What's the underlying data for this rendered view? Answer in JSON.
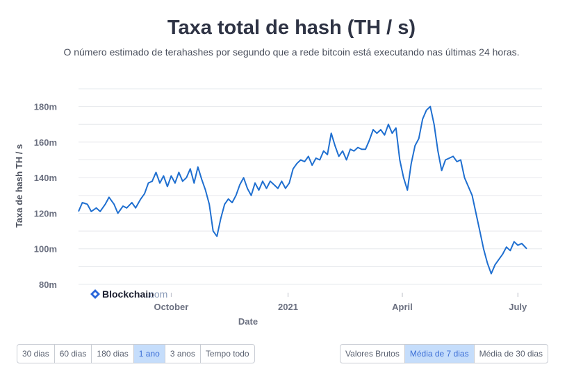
{
  "header": {
    "title": "Taxa total de hash (TH / s)",
    "subtitle": "O número estimado de terahashes por segundo que a rede bitcoin está executando nas últimas 24 horas."
  },
  "watermark": {
    "brand": "Blockchain",
    "suffix": ".com"
  },
  "range_buttons": [
    {
      "label": "30 dias",
      "active": false
    },
    {
      "label": "60 dias",
      "active": false
    },
    {
      "label": "180 dias",
      "active": false
    },
    {
      "label": "1 ano",
      "active": true
    },
    {
      "label": "3 anos",
      "active": false
    },
    {
      "label": "Tempo todo",
      "active": false
    }
  ],
  "average_buttons": [
    {
      "label": "Valores Brutos",
      "active": false
    },
    {
      "label": "Média de 7 dias",
      "active": true
    },
    {
      "label": "Média de 30 dias",
      "active": false
    }
  ],
  "colors": {
    "line": "#1f6fd0",
    "active_button_bg": "#c5ddfb",
    "grid": "#e6e8ec",
    "text": "#6b7080"
  },
  "chart_data": {
    "type": "line",
    "title": "Taxa total de hash (TH / s)",
    "xlabel": "Date",
    "ylabel": "Taxa de hash TH / s",
    "x_range": [
      "2020-07-20",
      "2021-07-20"
    ],
    "ylim": [
      80,
      190
    ],
    "y_ticks": [
      80,
      100,
      120,
      140,
      160,
      180
    ],
    "y_tick_labels": [
      "80m",
      "100m",
      "120m",
      "140m",
      "160m",
      "180m"
    ],
    "x_ticks": [
      {
        "date": "2020-10-01",
        "label": "October"
      },
      {
        "date": "2021-01-01",
        "label": "2021"
      },
      {
        "date": "2021-04-01",
        "label": "April"
      },
      {
        "date": "2021-07-01",
        "label": "July"
      }
    ],
    "grid": true,
    "series": [
      {
        "values": [
          [
            "2020-07-20",
            121
          ],
          [
            "2020-07-23",
            126
          ],
          [
            "2020-07-27",
            125
          ],
          [
            "2020-07-30",
            121
          ],
          [
            "2020-08-03",
            123
          ],
          [
            "2020-08-06",
            121
          ],
          [
            "2020-08-10",
            125
          ],
          [
            "2020-08-13",
            129
          ],
          [
            "2020-08-17",
            125
          ],
          [
            "2020-08-20",
            120
          ],
          [
            "2020-08-24",
            124
          ],
          [
            "2020-08-27",
            123
          ],
          [
            "2020-08-31",
            126
          ],
          [
            "2020-09-03",
            123
          ],
          [
            "2020-09-07",
            128
          ],
          [
            "2020-09-10",
            131
          ],
          [
            "2020-09-13",
            137
          ],
          [
            "2020-09-16",
            138
          ],
          [
            "2020-09-19",
            143
          ],
          [
            "2020-09-22",
            137
          ],
          [
            "2020-09-25",
            141
          ],
          [
            "2020-09-28",
            135
          ],
          [
            "2020-10-01",
            141
          ],
          [
            "2020-10-04",
            137
          ],
          [
            "2020-10-07",
            143
          ],
          [
            "2020-10-10",
            138
          ],
          [
            "2020-10-13",
            140
          ],
          [
            "2020-10-16",
            145
          ],
          [
            "2020-10-19",
            137
          ],
          [
            "2020-10-22",
            146
          ],
          [
            "2020-10-25",
            139
          ],
          [
            "2020-10-28",
            133
          ],
          [
            "2020-10-31",
            125
          ],
          [
            "2020-11-03",
            110
          ],
          [
            "2020-11-06",
            107
          ],
          [
            "2020-11-09",
            117
          ],
          [
            "2020-11-12",
            125
          ],
          [
            "2020-11-15",
            128
          ],
          [
            "2020-11-18",
            126
          ],
          [
            "2020-11-21",
            130
          ],
          [
            "2020-11-24",
            136
          ],
          [
            "2020-11-27",
            140
          ],
          [
            "2020-11-30",
            134
          ],
          [
            "2020-12-03",
            130
          ],
          [
            "2020-12-06",
            137
          ],
          [
            "2020-12-09",
            133
          ],
          [
            "2020-12-12",
            138
          ],
          [
            "2020-12-15",
            134
          ],
          [
            "2020-12-18",
            138
          ],
          [
            "2020-12-21",
            136
          ],
          [
            "2020-12-24",
            134
          ],
          [
            "2020-12-27",
            138
          ],
          [
            "2020-12-30",
            134
          ],
          [
            "2021-01-02",
            137
          ],
          [
            "2021-01-05",
            145
          ],
          [
            "2021-01-08",
            148
          ],
          [
            "2021-01-11",
            150
          ],
          [
            "2021-01-14",
            149
          ],
          [
            "2021-01-17",
            152
          ],
          [
            "2021-01-20",
            147
          ],
          [
            "2021-01-23",
            151
          ],
          [
            "2021-01-26",
            150
          ],
          [
            "2021-01-29",
            155
          ],
          [
            "2021-02-01",
            153
          ],
          [
            "2021-02-04",
            165
          ],
          [
            "2021-02-07",
            158
          ],
          [
            "2021-02-10",
            152
          ],
          [
            "2021-02-13",
            155
          ],
          [
            "2021-02-16",
            150
          ],
          [
            "2021-02-19",
            156
          ],
          [
            "2021-02-22",
            155
          ],
          [
            "2021-02-25",
            157
          ],
          [
            "2021-02-28",
            156
          ],
          [
            "2021-03-03",
            156
          ],
          [
            "2021-03-06",
            161
          ],
          [
            "2021-03-09",
            167
          ],
          [
            "2021-03-12",
            165
          ],
          [
            "2021-03-15",
            167
          ],
          [
            "2021-03-18",
            164
          ],
          [
            "2021-03-21",
            170
          ],
          [
            "2021-03-24",
            165
          ],
          [
            "2021-03-27",
            168
          ],
          [
            "2021-03-30",
            150
          ],
          [
            "2021-04-02",
            140
          ],
          [
            "2021-04-05",
            133
          ],
          [
            "2021-04-08",
            148
          ],
          [
            "2021-04-11",
            158
          ],
          [
            "2021-04-14",
            162
          ],
          [
            "2021-04-17",
            173
          ],
          [
            "2021-04-20",
            178
          ],
          [
            "2021-04-23",
            180
          ],
          [
            "2021-04-26",
            170
          ],
          [
            "2021-04-29",
            155
          ],
          [
            "2021-05-02",
            144
          ],
          [
            "2021-05-05",
            150
          ],
          [
            "2021-05-08",
            151
          ],
          [
            "2021-05-11",
            152
          ],
          [
            "2021-05-14",
            149
          ],
          [
            "2021-05-17",
            150
          ],
          [
            "2021-05-20",
            140
          ],
          [
            "2021-05-23",
            135
          ],
          [
            "2021-05-26",
            130
          ],
          [
            "2021-05-29",
            120
          ],
          [
            "2021-06-01",
            110
          ],
          [
            "2021-06-04",
            100
          ],
          [
            "2021-06-07",
            92
          ],
          [
            "2021-06-10",
            86
          ],
          [
            "2021-06-13",
            91
          ],
          [
            "2021-06-16",
            94
          ],
          [
            "2021-06-19",
            97
          ],
          [
            "2021-06-22",
            101
          ],
          [
            "2021-06-25",
            99
          ],
          [
            "2021-06-28",
            104
          ],
          [
            "2021-07-01",
            102
          ],
          [
            "2021-07-04",
            103
          ],
          [
            "2021-07-08",
            100
          ]
        ]
      }
    ]
  }
}
